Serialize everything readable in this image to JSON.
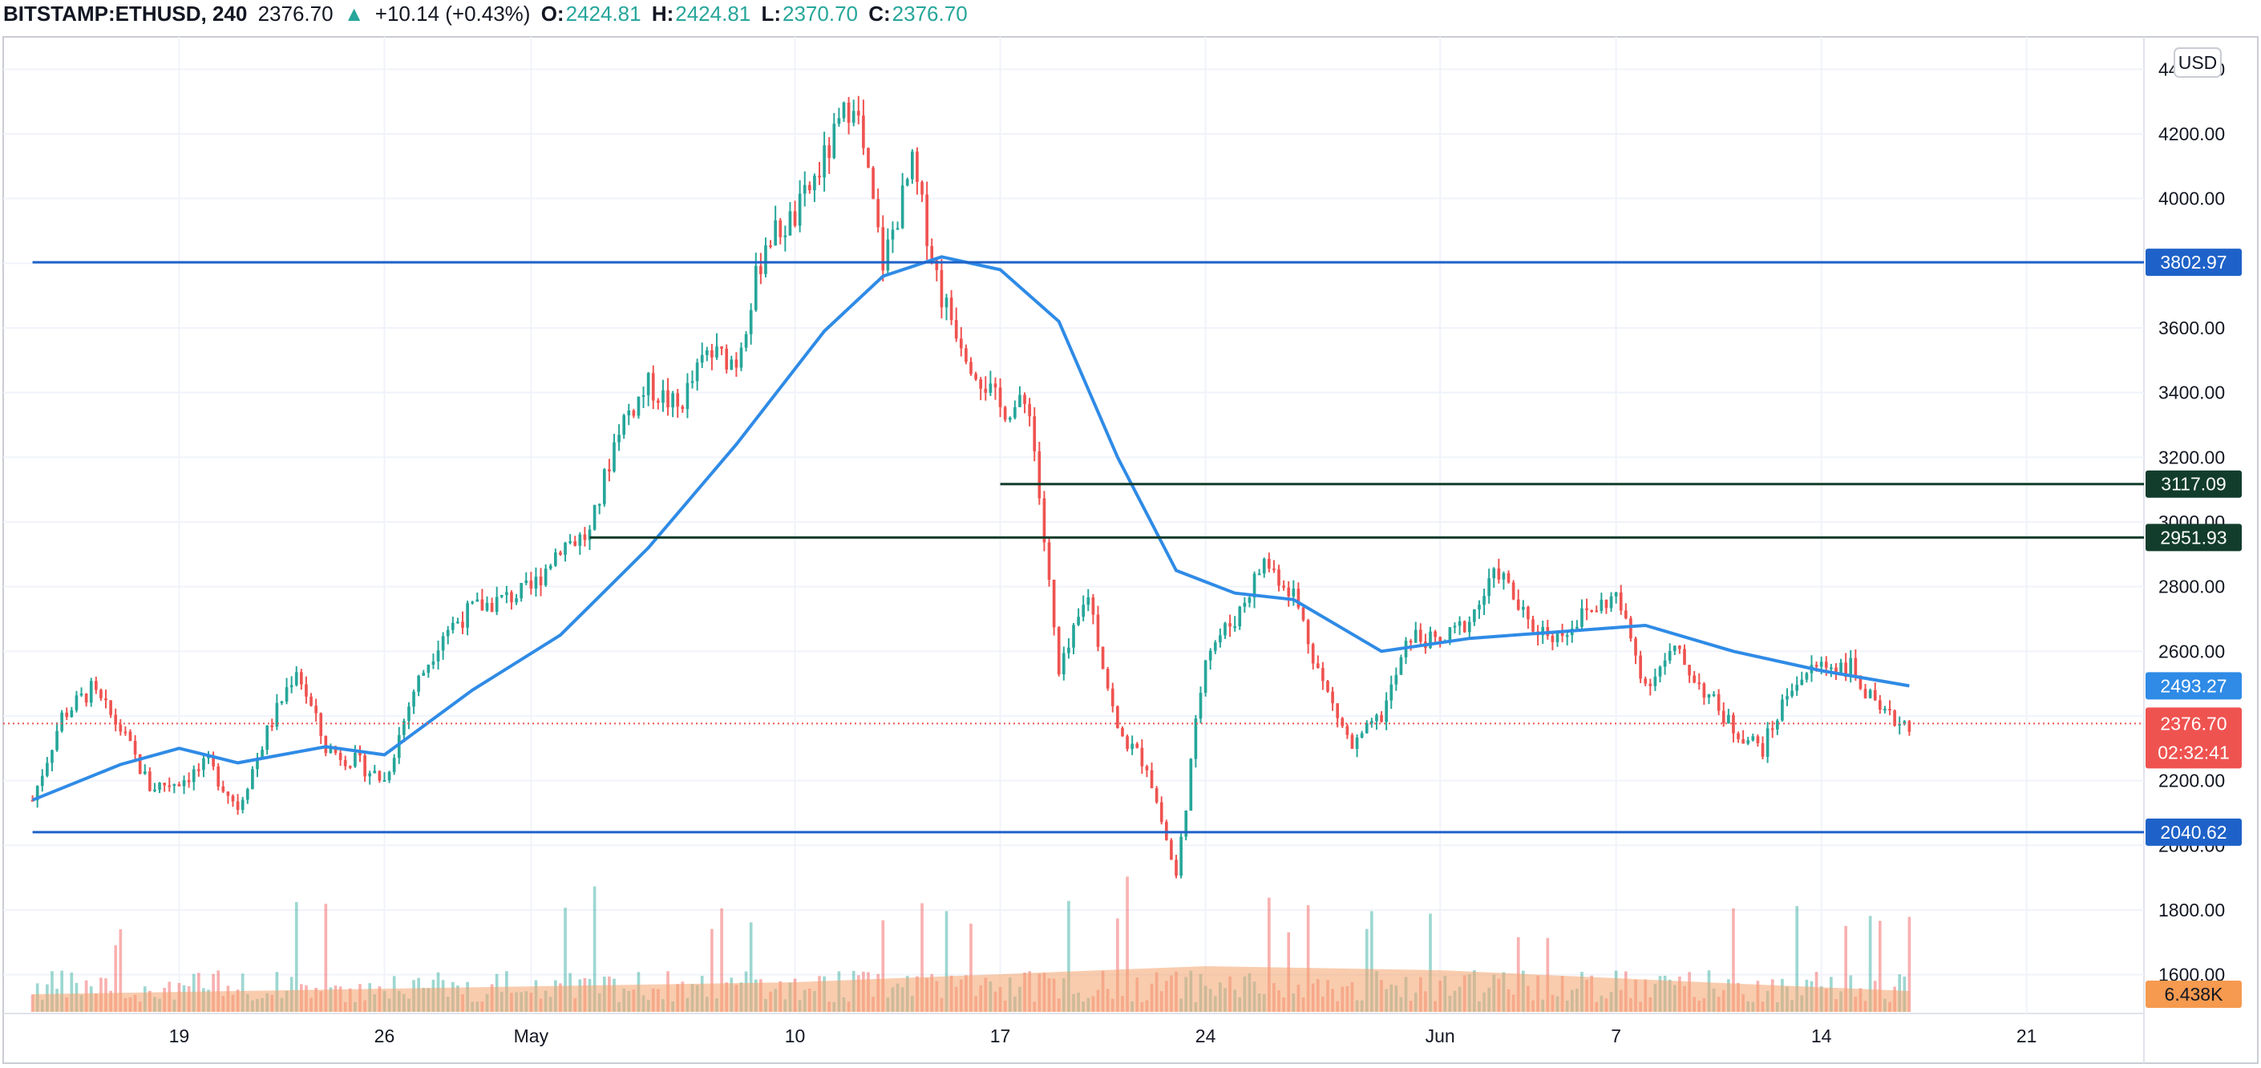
{
  "header": {
    "symbol": "BITSTAMP:ETHUSD, 240",
    "price": "2376.70",
    "arrow": "▲",
    "change": "+10.14 (+0.43%)",
    "o_label": "O:",
    "o_value": "2424.81",
    "h_label": "H:",
    "h_value": "2424.81",
    "l_label": "L:",
    "l_value": "2370.70",
    "c_label": "C:",
    "c_value": "2376.70"
  },
  "currency_button": "USD",
  "colors": {
    "up": "#26a69a",
    "down": "#ef5350",
    "ma": "#2f8be6",
    "blue_line": "#1e62c9",
    "green_line": "#123d2c",
    "volume_ma": "#f4a26b",
    "countdown": "#ef5350",
    "volume_tag": "#f59a4f"
  },
  "chart_data": {
    "type": "candlestick",
    "symbol": "BITSTAMP:ETHUSD",
    "interval": "240",
    "currency": "USD",
    "ylim": [
      1480,
      4500
    ],
    "grid": true,
    "y_ticks": [
      "4400.00",
      "4200.00",
      "4000.00",
      "3800.00",
      "3600.00",
      "3400.00",
      "3200.00",
      "3000.00",
      "2800.00",
      "2600.00",
      "2400.00",
      "2200.00",
      "2000.00",
      "1800.00",
      "1600.00"
    ],
    "x_ticks": [
      {
        "label": "19",
        "date": "2021-04-19"
      },
      {
        "label": "26",
        "date": "2021-04-26"
      },
      {
        "label": "May",
        "date": "2021-05-01"
      },
      {
        "label": "10",
        "date": "2021-05-10"
      },
      {
        "label": "17",
        "date": "2021-05-17"
      },
      {
        "label": "24",
        "date": "2021-05-24"
      },
      {
        "label": "Jun",
        "date": "2021-06-01"
      },
      {
        "label": "7",
        "date": "2021-06-07"
      },
      {
        "label": "14",
        "date": "2021-06-14"
      },
      {
        "label": "21",
        "date": "2021-06-21"
      }
    ],
    "date_range": [
      "2021-04-14",
      "2021-06-17"
    ],
    "price_path": [
      {
        "date": "2021-04-14",
        "price": 2140
      },
      {
        "date": "2021-04-15",
        "price": 2400
      },
      {
        "date": "2021-04-16",
        "price": 2480
      },
      {
        "date": "2021-04-17",
        "price": 2360
      },
      {
        "date": "2021-04-18",
        "price": 2180
      },
      {
        "date": "2021-04-19",
        "price": 2200
      },
      {
        "date": "2021-04-20",
        "price": 2250
      },
      {
        "date": "2021-04-21",
        "price": 2120
      },
      {
        "date": "2021-04-22",
        "price": 2350
      },
      {
        "date": "2021-04-23",
        "price": 2550
      },
      {
        "date": "2021-04-24",
        "price": 2300
      },
      {
        "date": "2021-04-25",
        "price": 2260
      },
      {
        "date": "2021-04-26",
        "price": 2200
      },
      {
        "date": "2021-04-27",
        "price": 2480
      },
      {
        "date": "2021-04-28",
        "price": 2660
      },
      {
        "date": "2021-04-29",
        "price": 2730
      },
      {
        "date": "2021-04-30",
        "price": 2760
      },
      {
        "date": "2021-05-01",
        "price": 2790
      },
      {
        "date": "2021-05-02",
        "price": 2930
      },
      {
        "date": "2021-05-03",
        "price": 2960
      },
      {
        "date": "2021-05-04",
        "price": 3300
      },
      {
        "date": "2021-05-05",
        "price": 3420
      },
      {
        "date": "2021-05-06",
        "price": 3350
      },
      {
        "date": "2021-05-07",
        "price": 3520
      },
      {
        "date": "2021-05-08",
        "price": 3500
      },
      {
        "date": "2021-05-09",
        "price": 3870
      },
      {
        "date": "2021-05-10",
        "price": 3940
      },
      {
        "date": "2021-05-11",
        "price": 4120
      },
      {
        "date": "2021-05-12",
        "price": 4320
      },
      {
        "date": "2021-05-13",
        "price": 3800
      },
      {
        "date": "2021-05-14",
        "price": 4100
      },
      {
        "date": "2021-05-15",
        "price": 3700
      },
      {
        "date": "2021-05-16",
        "price": 3500
      },
      {
        "date": "2021-05-17",
        "price": 3350
      },
      {
        "date": "2021-05-18",
        "price": 3360
      },
      {
        "date": "2021-05-19",
        "price": 2520
      },
      {
        "date": "2021-05-20",
        "price": 2780
      },
      {
        "date": "2021-05-21",
        "price": 2350
      },
      {
        "date": "2021-05-22",
        "price": 2250
      },
      {
        "date": "2021-05-23",
        "price": 1900
      },
      {
        "date": "2021-05-24",
        "price": 2600
      },
      {
        "date": "2021-05-25",
        "price": 2700
      },
      {
        "date": "2021-05-26",
        "price": 2880
      },
      {
        "date": "2021-05-27",
        "price": 2780
      },
      {
        "date": "2021-05-28",
        "price": 2500
      },
      {
        "date": "2021-05-29",
        "price": 2300
      },
      {
        "date": "2021-05-30",
        "price": 2400
      },
      {
        "date": "2021-05-31",
        "price": 2650
      },
      {
        "date": "2021-06-01",
        "price": 2620
      },
      {
        "date": "2021-06-02",
        "price": 2700
      },
      {
        "date": "2021-06-03",
        "price": 2850
      },
      {
        "date": "2021-06-04",
        "price": 2680
      },
      {
        "date": "2021-06-05",
        "price": 2650
      },
      {
        "date": "2021-06-06",
        "price": 2720
      },
      {
        "date": "2021-06-07",
        "price": 2770
      },
      {
        "date": "2021-06-08",
        "price": 2500
      },
      {
        "date": "2021-06-09",
        "price": 2600
      },
      {
        "date": "2021-06-10",
        "price": 2480
      },
      {
        "date": "2021-06-11",
        "price": 2360
      },
      {
        "date": "2021-06-12",
        "price": 2300
      },
      {
        "date": "2021-06-13",
        "price": 2500
      },
      {
        "date": "2021-06-14",
        "price": 2560
      },
      {
        "date": "2021-06-15",
        "price": 2550
      },
      {
        "date": "2021-06-16",
        "price": 2400
      },
      {
        "date": "2021-06-17",
        "price": 2377
      }
    ],
    "moving_average": [
      {
        "date": "2021-04-14",
        "value": 2140
      },
      {
        "date": "2021-04-17",
        "value": 2250
      },
      {
        "date": "2021-04-19",
        "value": 2300
      },
      {
        "date": "2021-04-21",
        "value": 2255
      },
      {
        "date": "2021-04-24",
        "value": 2305
      },
      {
        "date": "2021-04-26",
        "value": 2280
      },
      {
        "date": "2021-04-29",
        "value": 2480
      },
      {
        "date": "2021-05-02",
        "value": 2650
      },
      {
        "date": "2021-05-05",
        "value": 2920
      },
      {
        "date": "2021-05-08",
        "value": 3240
      },
      {
        "date": "2021-05-11",
        "value": 3590
      },
      {
        "date": "2021-05-13",
        "value": 3760
      },
      {
        "date": "2021-05-15",
        "value": 3820
      },
      {
        "date": "2021-05-17",
        "value": 3780
      },
      {
        "date": "2021-05-19",
        "value": 3620
      },
      {
        "date": "2021-05-21",
        "value": 3200
      },
      {
        "date": "2021-05-23",
        "value": 2850
      },
      {
        "date": "2021-05-25",
        "value": 2780
      },
      {
        "date": "2021-05-27",
        "value": 2760
      },
      {
        "date": "2021-05-30",
        "value": 2600
      },
      {
        "date": "2021-06-02",
        "value": 2640
      },
      {
        "date": "2021-06-05",
        "value": 2660
      },
      {
        "date": "2021-06-08",
        "value": 2680
      },
      {
        "date": "2021-06-11",
        "value": 2600
      },
      {
        "date": "2021-06-14",
        "value": 2540
      },
      {
        "date": "2021-06-17",
        "value": 2493
      }
    ],
    "horizontal_lines": [
      {
        "price": 3802.97,
        "label": "3802.97",
        "color": "#1e62c9",
        "start_date": "2021-04-14"
      },
      {
        "price": 3117.09,
        "label": "3117.09",
        "color": "#123d2c",
        "start_date": "2021-05-17"
      },
      {
        "price": 2951.93,
        "label": "2951.93",
        "color": "#123d2c",
        "start_date": "2021-05-03"
      },
      {
        "price": 2040.62,
        "label": "2040.62",
        "color": "#1e62c9",
        "start_date": "2021-04-14"
      }
    ],
    "ma_label": "2493.27",
    "last_price": {
      "price": 2376.7,
      "label": "2376.70",
      "countdown": "02:32:41"
    },
    "volume_label": "6.438K"
  }
}
